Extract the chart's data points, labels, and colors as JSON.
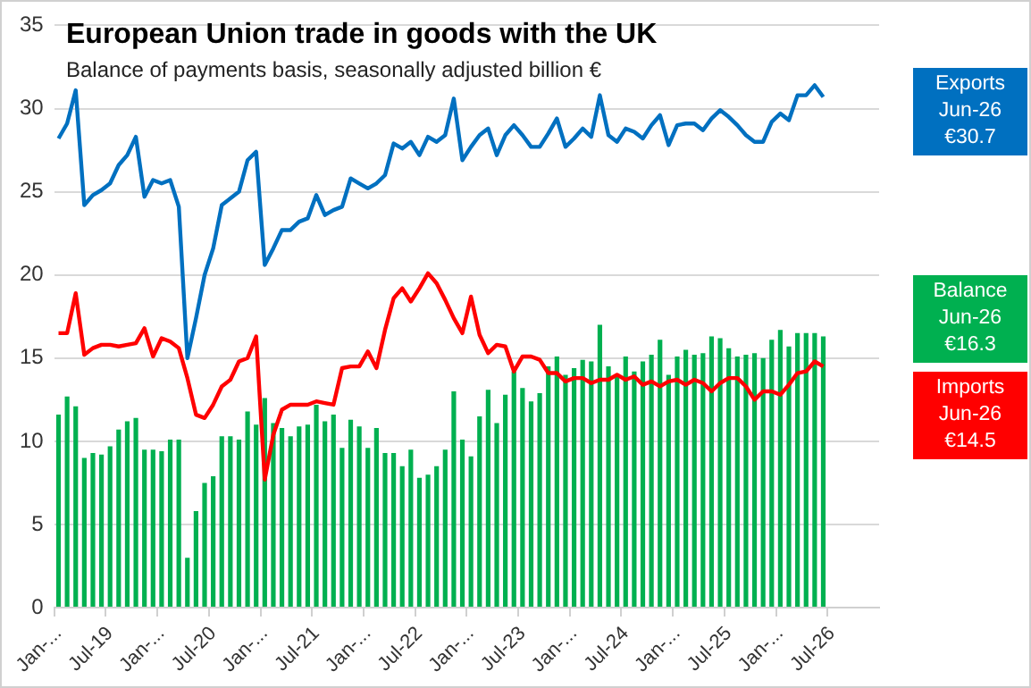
{
  "chart_data": {
    "type": "bar",
    "title": "European Union trade in goods with the UK",
    "subtitle": "Balance of payments basis, seasonally adjusted billion €",
    "categories": [
      "Jan-...",
      null,
      null,
      null,
      null,
      null,
      "Jul-19",
      null,
      null,
      null,
      null,
      null,
      "Jan-...",
      null,
      null,
      null,
      null,
      null,
      "Jul-20",
      null,
      null,
      null,
      null,
      null,
      "Jan-...",
      null,
      null,
      null,
      null,
      null,
      "Jul-21",
      null,
      null,
      null,
      null,
      null,
      "Jan-...",
      null,
      null,
      null,
      null,
      null,
      "Jul-22",
      null,
      null,
      null,
      null,
      null,
      "Jan-...",
      null,
      null,
      null,
      null,
      null,
      "Jul-23",
      null,
      null,
      null,
      null,
      null,
      "Jan-...",
      null,
      null,
      null,
      null,
      null,
      "Jul-24",
      null,
      null,
      null,
      null,
      null,
      "Jan-...",
      null,
      null,
      null,
      null,
      null,
      "Jul-25",
      null,
      null,
      null,
      null,
      null,
      "Jan-...",
      null,
      null,
      null,
      null,
      null,
      "Jul-26",
      null,
      null,
      null,
      null,
      null
    ],
    "series": [
      {
        "name": "Exports",
        "type": "line",
        "color": "#0070c0",
        "values": [
          28.2,
          29.1,
          31.1,
          24.2,
          24.8,
          25.1,
          25.5,
          26.6,
          27.2,
          28.3,
          24.7,
          25.7,
          25.5,
          25.7,
          24.1,
          15.0,
          17.4,
          20.0,
          21.6,
          24.2,
          24.6,
          25.0,
          26.9,
          27.4,
          20.6,
          21.6,
          22.7,
          22.7,
          23.2,
          23.4,
          24.8,
          23.6,
          23.9,
          24.1,
          25.8,
          25.5,
          25.2,
          25.5,
          26.0,
          27.9,
          27.6,
          28.0,
          27.2,
          28.3,
          28.0,
          28.4,
          30.6,
          26.9,
          27.7,
          28.4,
          28.8,
          27.2,
          28.4,
          29.0,
          28.4,
          27.7,
          27.7,
          28.5,
          29.4,
          27.7,
          28.2,
          28.8,
          28.3,
          30.8,
          28.4,
          28.0,
          28.8,
          28.6,
          28.2,
          29.0,
          29.6,
          27.8,
          29.0,
          29.1,
          29.1,
          28.7,
          29.4,
          29.9,
          29.5,
          29.0,
          28.4,
          28.0,
          28.0,
          29.2,
          29.7,
          29.3,
          30.8,
          30.8,
          31.4,
          30.7,
          null,
          null,
          null,
          null,
          null,
          null
        ]
      },
      {
        "name": "Balance",
        "color": "#00b050",
        "values": [
          11.6,
          12.7,
          12.1,
          9.0,
          9.3,
          9.2,
          9.7,
          10.7,
          11.2,
          11.4,
          9.5,
          9.5,
          9.4,
          10.1,
          10.1,
          3.0,
          5.8,
          7.5,
          7.9,
          10.3,
          10.3,
          10.1,
          11.8,
          11.0,
          12.6,
          11.1,
          10.8,
          10.3,
          10.9,
          11.0,
          12.2,
          11.2,
          11.6,
          9.6,
          11.3,
          10.9,
          9.6,
          10.8,
          9.3,
          9.3,
          8.5,
          9.5,
          7.8,
          8.0,
          8.5,
          9.5,
          13.0,
          10.1,
          9.1,
          11.5,
          13.1,
          11.1,
          12.8,
          14.2,
          13.2,
          12.4,
          12.9,
          14.5,
          15.1,
          14.0,
          14.4,
          14.9,
          14.8,
          17.0,
          14.5,
          13.9,
          15.1,
          14.2,
          14.8,
          15.2,
          16.1,
          14.0,
          15.1,
          15.5,
          15.2,
          15.3,
          16.3,
          16.2,
          15.6,
          15.1,
          15.2,
          15.3,
          15.0,
          16.1,
          16.7,
          15.7,
          16.5,
          16.5,
          16.5,
          16.3,
          null,
          null,
          null,
          null,
          null,
          null
        ]
      },
      {
        "name": "Imports",
        "type": "line",
        "color": "#ff0000",
        "values": [
          16.5,
          16.5,
          18.9,
          15.2,
          15.6,
          15.8,
          15.8,
          15.7,
          15.8,
          15.9,
          16.8,
          15.1,
          16.2,
          16.0,
          15.6,
          13.8,
          11.6,
          11.4,
          12.2,
          13.3,
          13.7,
          14.8,
          15.0,
          16.3,
          7.7,
          10.4,
          11.9,
          12.2,
          12.2,
          12.2,
          12.4,
          12.3,
          12.2,
          14.4,
          14.5,
          14.5,
          15.4,
          14.4,
          16.7,
          18.6,
          19.2,
          18.4,
          19.2,
          20.1,
          19.5,
          18.5,
          17.4,
          16.5,
          18.7,
          16.4,
          15.3,
          15.8,
          15.7,
          14.2,
          15.1,
          15.1,
          14.9,
          14.1,
          14.1,
          13.6,
          13.8,
          13.8,
          13.5,
          13.7,
          13.7,
          14.0,
          13.7,
          13.9,
          13.4,
          13.6,
          13.3,
          13.6,
          13.7,
          13.4,
          13.7,
          13.5,
          13.0,
          13.5,
          13.8,
          13.8,
          13.3,
          12.5,
          13.0,
          13.0,
          12.8,
          13.4,
          14.1,
          14.2,
          14.8,
          14.5,
          null,
          null,
          null,
          null,
          null,
          null
        ]
      }
    ],
    "annotations": [
      "Jun-26\n€30.7",
      "Jun-26\n€16.3",
      "Jun-26\n€14.5"
    ],
    "ylim": [
      0,
      35
    ],
    "yticks": [
      0,
      5,
      10,
      15,
      20,
      25,
      30,
      35
    ],
    "grid": "y",
    "legend": "right",
    "marker": "none",
    "line_style": "solid"
  }
}
